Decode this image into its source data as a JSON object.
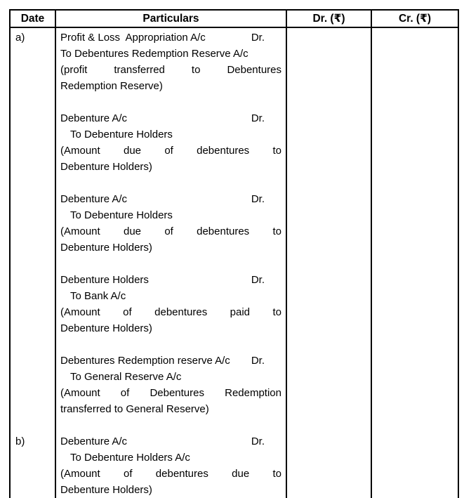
{
  "header": {
    "date": "Date",
    "particulars": "Particulars",
    "dr": "Dr. (₹)",
    "cr": "Cr. (₹)"
  },
  "rows": {
    "a": {
      "label": "a)",
      "entries": [
        {
          "account": "Profit & Loss  Appropriation A/c",
          "dr_marker": "Dr.",
          "credit": "To Debentures Redemption Reserve A/c",
          "narration_line1": "(profit transferred to Debentures",
          "narration_line2": "Redemption Reserve)"
        },
        {
          "account": "Debenture A/c",
          "dr_marker": "Dr.",
          "credit": "To Debenture Holders",
          "narration_line1": "(Amount due of debentures to",
          "narration_line2": "Debenture Holders)"
        },
        {
          "account": "Debenture A/c",
          "dr_marker": "Dr.",
          "credit": "To Debenture Holders",
          "narration_line1": "(Amount due of debentures to",
          "narration_line2": "Debenture Holders)"
        },
        {
          "account": "Debenture Holders",
          "dr_marker": "Dr.",
          "credit": "To Bank A/c",
          "narration_line1": "(Amount of debentures paid to",
          "narration_line2": "Debenture Holders)"
        },
        {
          "account": "Debentures Redemption reserve A/c",
          "dr_marker": "Dr.",
          "credit": "To General Reserve A/c",
          "narration_line1": "(Amount of Debentures Redemption",
          "narration_line2": "transferred to General Reserve)"
        }
      ]
    },
    "b": {
      "label": "b)",
      "entries": [
        {
          "account": "Debenture A/c",
          "dr_marker": "Dr.",
          "credit": "To Debenture Holders A/c",
          "narration_line1": "(Amount of debentures due to",
          "narration_line2": "Debenture Holders)"
        }
      ]
    }
  }
}
